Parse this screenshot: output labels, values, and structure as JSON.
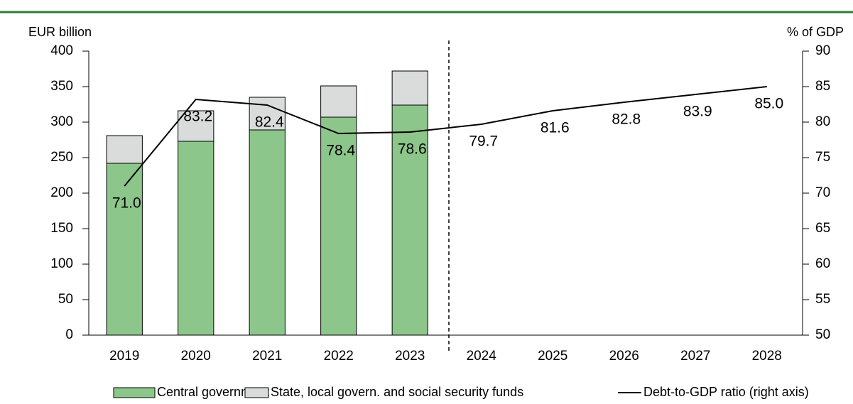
{
  "chart_data": {
    "type": "bar",
    "y_label": "EUR billion",
    "y2_label": "% of GDP",
    "categories": [
      "2019",
      "2020",
      "2021",
      "2022",
      "2023",
      "2024",
      "2025",
      "2026",
      "2027",
      "2028"
    ],
    "series": [
      {
        "name": "Central government",
        "color": "#8cc68a",
        "values": [
          242,
          273,
          289,
          307,
          324,
          null,
          null,
          null,
          null,
          null
        ]
      },
      {
        "name": "State, local govern. and social security funds",
        "color": "#d9dcdb",
        "values": [
          39,
          43,
          46,
          44,
          48,
          null,
          null,
          null,
          null,
          null
        ]
      },
      {
        "name": "Debt-to-GDP ratio (right axis)",
        "type": "line",
        "axis": "y2",
        "color": "#000000",
        "values": [
          71.0,
          83.2,
          82.4,
          78.4,
          78.6,
          79.7,
          81.6,
          82.8,
          83.9,
          85.0
        ],
        "value_labels": [
          "71.0",
          "83.2",
          "82.4",
          "78.4",
          "78.6",
          "79.7",
          "81.6",
          "82.8",
          "83.9",
          "85.0"
        ]
      }
    ],
    "ylim": [
      0,
      400
    ],
    "yticks": [
      0,
      50,
      100,
      150,
      200,
      250,
      300,
      350,
      400
    ],
    "y2lim": [
      50,
      90
    ],
    "y2ticks": [
      50,
      55,
      60,
      65,
      70,
      75,
      80,
      85,
      90
    ]
  }
}
